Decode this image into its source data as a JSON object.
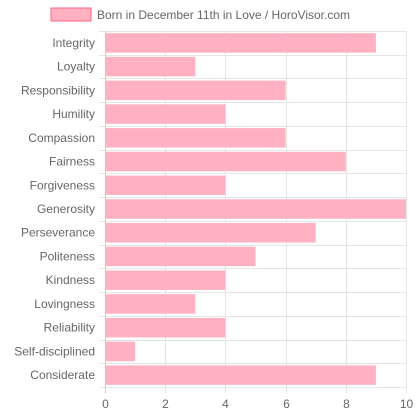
{
  "chart_data": {
    "type": "bar",
    "orientation": "horizontal",
    "legend": {
      "label": "Born in December 11th in Love / HoroVisor.com",
      "placement": "top"
    },
    "categories": [
      "Integrity",
      "Loyalty",
      "Responsibility",
      "Humility",
      "Compassion",
      "Fairness",
      "Forgiveness",
      "Generosity",
      "Perseverance",
      "Politeness",
      "Kindness",
      "Lovingness",
      "Reliability",
      "Self-disciplined",
      "Considerate"
    ],
    "series": [
      {
        "name": "Born in December 11th in Love / HoroVisor.com",
        "values": [
          9,
          3,
          6,
          4,
          6,
          8,
          4,
          10,
          7,
          5,
          4,
          3,
          4,
          1,
          9
        ],
        "color": "#ffb1c1",
        "border_color": "#ff6384"
      }
    ],
    "xlim": [
      0,
      10
    ],
    "x_ticks": [
      0,
      2,
      4,
      6,
      8,
      10
    ],
    "grid": true
  }
}
